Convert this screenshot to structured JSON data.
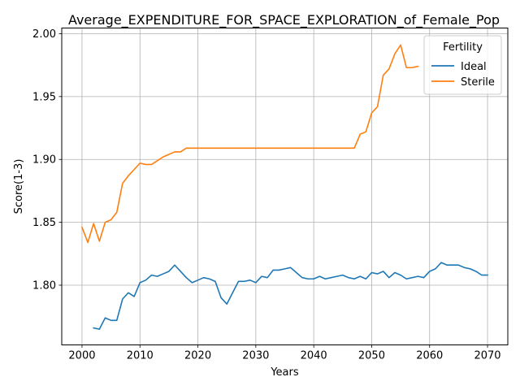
{
  "chart_data": {
    "type": "line",
    "title": "Average_EXPENDITURE_FOR_SPACE_EXPLORATION_of_Female_Pop",
    "xlabel": "Years",
    "ylabel": "Score(1-3)",
    "xlim": [
      1996.5,
      2073.5
    ],
    "ylim": [
      1.7525,
      2.0045
    ],
    "xticks": [
      2000,
      2010,
      2020,
      2030,
      2040,
      2050,
      2060,
      2070
    ],
    "xtick_labels": [
      "2000",
      "2010",
      "2020",
      "2030",
      "2040",
      "2050",
      "2060",
      "2070"
    ],
    "yticks": [
      1.8,
      1.85,
      1.9,
      1.95,
      2.0
    ],
    "ytick_labels": [
      "1.80",
      "1.85",
      "1.90",
      "1.95",
      "2.00"
    ],
    "grid": true,
    "legend": {
      "title": "Fertility",
      "position": "top-right"
    },
    "series": [
      {
        "name": "Ideal",
        "color": "#1f77b4",
        "x": [
          2002,
          2003,
          2004,
          2005,
          2006,
          2007,
          2008,
          2009,
          2010,
          2011,
          2012,
          2013,
          2014,
          2015,
          2016,
          2017,
          2018,
          2019,
          2020,
          2021,
          2022,
          2023,
          2024,
          2025,
          2026,
          2027,
          2028,
          2029,
          2030,
          2031,
          2032,
          2033,
          2034,
          2035,
          2036,
          2037,
          2038,
          2039,
          2040,
          2041,
          2042,
          2043,
          2044,
          2045,
          2046,
          2047,
          2048,
          2049,
          2050,
          2051,
          2052,
          2053,
          2054,
          2055,
          2056,
          2057,
          2058,
          2059,
          2060,
          2061,
          2062,
          2063,
          2064,
          2065,
          2066,
          2067,
          2068,
          2069,
          2070
        ],
        "y": [
          1.766,
          1.765,
          1.774,
          1.772,
          1.772,
          1.789,
          1.794,
          1.791,
          1.802,
          1.804,
          1.808,
          1.807,
          1.809,
          1.811,
          1.816,
          1.811,
          1.806,
          1.802,
          1.804,
          1.806,
          1.805,
          1.803,
          1.79,
          1.785,
          1.794,
          1.803,
          1.803,
          1.804,
          1.802,
          1.807,
          1.806,
          1.812,
          1.812,
          1.813,
          1.814,
          1.81,
          1.806,
          1.805,
          1.805,
          1.807,
          1.805,
          1.806,
          1.807,
          1.808,
          1.806,
          1.805,
          1.807,
          1.805,
          1.81,
          1.809,
          1.811,
          1.806,
          1.81,
          1.808,
          1.805,
          1.806,
          1.807,
          1.806,
          1.811,
          1.813,
          1.818,
          1.816,
          1.816,
          1.816,
          1.814,
          1.813,
          1.811,
          1.808,
          1.808
        ]
      },
      {
        "name": "Sterile",
        "color": "#ff7f0e",
        "x": [
          2000,
          2001,
          2002,
          2003,
          2004,
          2005,
          2006,
          2007,
          2008,
          2009,
          2010,
          2011,
          2012,
          2013,
          2014,
          2015,
          2016,
          2017,
          2018,
          2019,
          2020,
          2021,
          2022,
          2023,
          2024,
          2025,
          2026,
          2027,
          2028,
          2029,
          2030,
          2031,
          2032,
          2033,
          2034,
          2035,
          2036,
          2037,
          2038,
          2039,
          2040,
          2041,
          2042,
          2043,
          2044,
          2045,
          2046,
          2047,
          2048,
          2049,
          2050,
          2051,
          2052,
          2053,
          2054,
          2055,
          2056,
          2057,
          2058
        ],
        "y": [
          1.846,
          1.834,
          1.849,
          1.835,
          1.85,
          1.852,
          1.858,
          1.881,
          1.887,
          1.892,
          1.897,
          1.896,
          1.896,
          1.899,
          1.902,
          1.904,
          1.906,
          1.906,
          1.909,
          1.909,
          1.909,
          1.909,
          1.909,
          1.909,
          1.909,
          1.909,
          1.909,
          1.909,
          1.909,
          1.909,
          1.909,
          1.909,
          1.909,
          1.909,
          1.909,
          1.909,
          1.909,
          1.909,
          1.909,
          1.909,
          1.909,
          1.909,
          1.909,
          1.909,
          1.909,
          1.909,
          1.909,
          1.909,
          1.92,
          1.922,
          1.937,
          1.942,
          1.967,
          1.972,
          1.984,
          1.991,
          1.973,
          1.973,
          1.974
        ]
      }
    ]
  }
}
